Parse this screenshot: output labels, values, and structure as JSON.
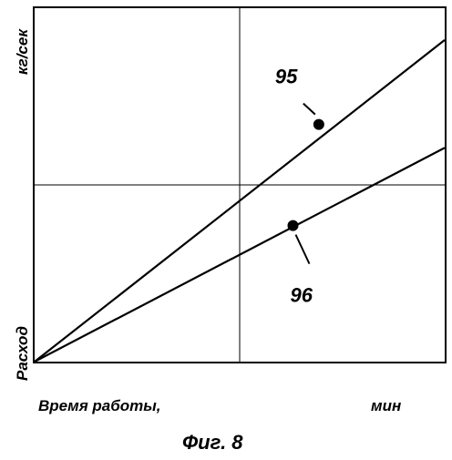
{
  "chart_data": {
    "type": "line",
    "title": "",
    "caption": "Фиг. 8",
    "xlabel_left": "Время работы,",
    "xlabel_unit": "мин",
    "ylabel_top": "кг/сек",
    "ylabel_bottom": "Расход",
    "xlim": [
      0,
      1
    ],
    "ylim": [
      0,
      1
    ],
    "grid_lines": {
      "x": [
        0.5
      ],
      "y": [
        0.5
      ]
    },
    "series": [
      {
        "name": "95",
        "points": [
          [
            0,
            0
          ],
          [
            1,
            0.91
          ]
        ],
        "marker": [
          0.693,
          0.671
        ]
      },
      {
        "name": "96",
        "points": [
          [
            0,
            0
          ],
          [
            1,
            0.605
          ]
        ],
        "marker": [
          0.63,
          0.385
        ]
      }
    ]
  }
}
